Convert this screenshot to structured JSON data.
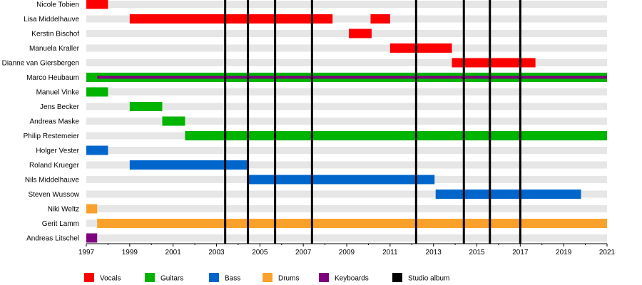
{
  "chart_data": {
    "type": "timeline",
    "title": "",
    "xlabel": "",
    "ylabel": "",
    "x_range": [
      1997,
      2021
    ],
    "tick_labels": [
      "1997",
      "1999",
      "2001",
      "2003",
      "2005",
      "2007",
      "2009",
      "2011",
      "2013",
      "2015",
      "2017",
      "2019",
      "2021"
    ],
    "roles": [
      {
        "key": "vocals",
        "label": "Vocals",
        "color": "#ff0000"
      },
      {
        "key": "guitars",
        "label": "Guitars",
        "color": "#00b400"
      },
      {
        "key": "bass",
        "label": "Bass",
        "color": "#0066cc"
      },
      {
        "key": "drums",
        "label": "Drums",
        "color": "#f9a12a"
      },
      {
        "key": "keyboards",
        "label": "Keyboards",
        "color": "#800080"
      },
      {
        "key": "studio_album",
        "label": "Studio album",
        "color": "#000000"
      }
    ],
    "members": [
      {
        "name": "Nicole Tobien",
        "spans": [
          {
            "role": "vocals",
            "start": 1997.0,
            "end": 1998.0
          }
        ]
      },
      {
        "name": "Lisa Middelhauve",
        "spans": [
          {
            "role": "vocals",
            "start": 1999.0,
            "end": 2008.35
          },
          {
            "role": "vocals",
            "start": 2010.1,
            "end": 2011.0
          }
        ]
      },
      {
        "name": "Kerstin Bischof",
        "spans": [
          {
            "role": "vocals",
            "start": 2009.1,
            "end": 2010.15
          }
        ]
      },
      {
        "name": "Manuela Kraller",
        "spans": [
          {
            "role": "vocals",
            "start": 2011.0,
            "end": 2013.85
          }
        ]
      },
      {
        "name": "Dianne van Giersbergen",
        "spans": [
          {
            "role": "vocals",
            "start": 2013.85,
            "end": 2017.7
          }
        ]
      },
      {
        "name": "Marco Heubaum",
        "spans": [
          {
            "role": "guitars",
            "start": 1997.0,
            "end": 2021.0
          },
          {
            "role": "keyboards",
            "start": 1997.5,
            "end": 2021.0,
            "thin": true
          }
        ]
      },
      {
        "name": "Manuel Vinke",
        "spans": [
          {
            "role": "guitars",
            "start": 1997.0,
            "end": 1998.0
          }
        ]
      },
      {
        "name": "Jens Becker",
        "spans": [
          {
            "role": "guitars",
            "start": 1999.0,
            "end": 2000.5
          }
        ]
      },
      {
        "name": "Andreas Maske",
        "spans": [
          {
            "role": "guitars",
            "start": 2000.5,
            "end": 2001.55
          }
        ]
      },
      {
        "name": "Philip Restemeier",
        "spans": [
          {
            "role": "guitars",
            "start": 2001.55,
            "end": 2021.0
          }
        ]
      },
      {
        "name": "Holger Vester",
        "spans": [
          {
            "role": "bass",
            "start": 1997.0,
            "end": 1998.0
          }
        ]
      },
      {
        "name": "Roland Krueger",
        "spans": [
          {
            "role": "bass",
            "start": 1999.0,
            "end": 2004.45
          }
        ]
      },
      {
        "name": "Nils Middelhauve",
        "spans": [
          {
            "role": "bass",
            "start": 2004.45,
            "end": 2013.05
          }
        ]
      },
      {
        "name": "Steven Wussow",
        "spans": [
          {
            "role": "bass",
            "start": 2013.1,
            "end": 2019.8
          }
        ]
      },
      {
        "name": "Niki Weltz",
        "spans": [
          {
            "role": "drums",
            "start": 1997.0,
            "end": 1997.5
          }
        ]
      },
      {
        "name": "Gerit Lamm",
        "spans": [
          {
            "role": "drums",
            "start": 1997.5,
            "end": 2021.0
          }
        ]
      },
      {
        "name": "Andreas Litschel",
        "spans": [
          {
            "role": "keyboards",
            "start": 1997.0,
            "end": 1997.5
          }
        ]
      }
    ],
    "studio_albums": [
      2003.4,
      2004.45,
      2005.7,
      2007.4,
      2012.2,
      2014.4,
      2015.6,
      2017.0
    ]
  }
}
